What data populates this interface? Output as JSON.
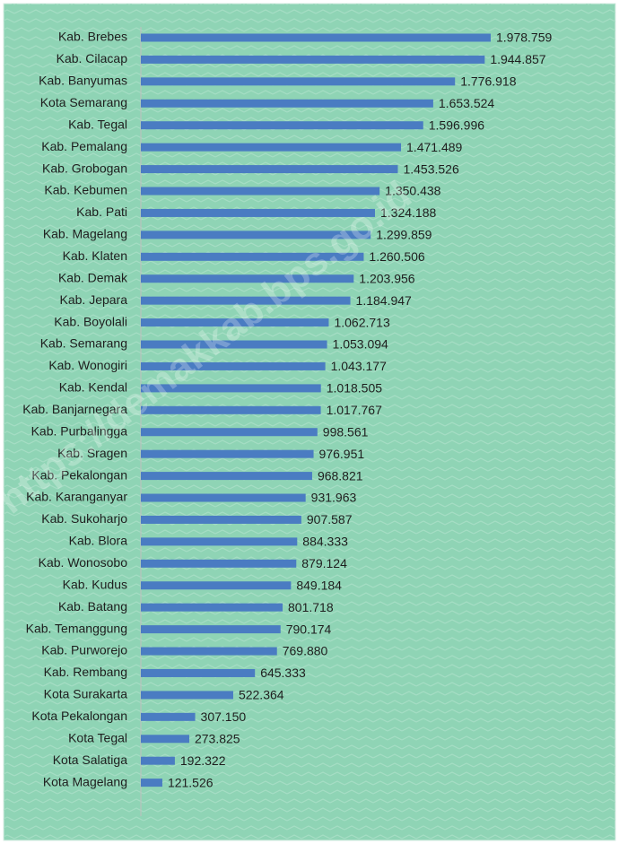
{
  "chart_data": {
    "type": "barh",
    "color": "#4a7cc2",
    "watermark": "https://demakkab.bps.go.id",
    "categories": [
      "Kab. Brebes",
      "Kab. Cilacap",
      "Kab. Banyumas",
      "Kota Semarang",
      "Kab. Tegal",
      "Kab. Pemalang",
      "Kab. Grobogan",
      "Kab. Kebumen",
      "Kab. Pati",
      "Kab. Magelang",
      "Kab. Klaten",
      "Kab. Demak",
      "Kab. Jepara",
      "Kab. Boyolali",
      "Kab. Semarang",
      "Kab. Wonogiri",
      "Kab. Kendal",
      "Kab. Banjarnegara",
      "Kab. Purbalingga",
      "Kab. Sragen",
      "Kab. Pekalongan",
      "Kab. Karanganyar",
      "Kab. Sukoharjo",
      "Kab. Blora",
      "Kab. Wonosobo",
      "Kab. Kudus",
      "Kab. Batang",
      "Kab. Temanggung",
      "Kab. Purworejo",
      "Kab. Rembang",
      "Kota Surakarta",
      "Kota Pekalongan",
      "Kota Tegal",
      "Kota Salatiga",
      "Kota Magelang"
    ],
    "values": [
      1978759,
      1944857,
      1776918,
      1653524,
      1596996,
      1471489,
      1453526,
      1350438,
      1324188,
      1299859,
      1260506,
      1203956,
      1184947,
      1062713,
      1053094,
      1043177,
      1018505,
      1017767,
      998561,
      976951,
      968821,
      931963,
      907587,
      884333,
      879124,
      849184,
      801718,
      790174,
      769880,
      645333,
      522364,
      307150,
      273825,
      192322,
      121526
    ],
    "value_labels": [
      "1.978.759",
      "1.944.857",
      "1.776.918",
      "1.653.524",
      "1.596.996",
      "1.471.489",
      "1.453.526",
      "1.350.438",
      "1.324.188",
      "1.299.859",
      "1.260.506",
      "1.203.956",
      "1.184.947",
      "1.062.713",
      "1.053.094",
      "1.043.177",
      "1.018.505",
      "1.017.767",
      "998.561",
      "976.951",
      "968.821",
      "931.963",
      "907.587",
      "884.333",
      "879.124",
      "849.184",
      "801.718",
      "790.174",
      "769.880",
      "645.333",
      "522.364",
      "307.150",
      "273.825",
      "192.322",
      "121.526"
    ]
  }
}
